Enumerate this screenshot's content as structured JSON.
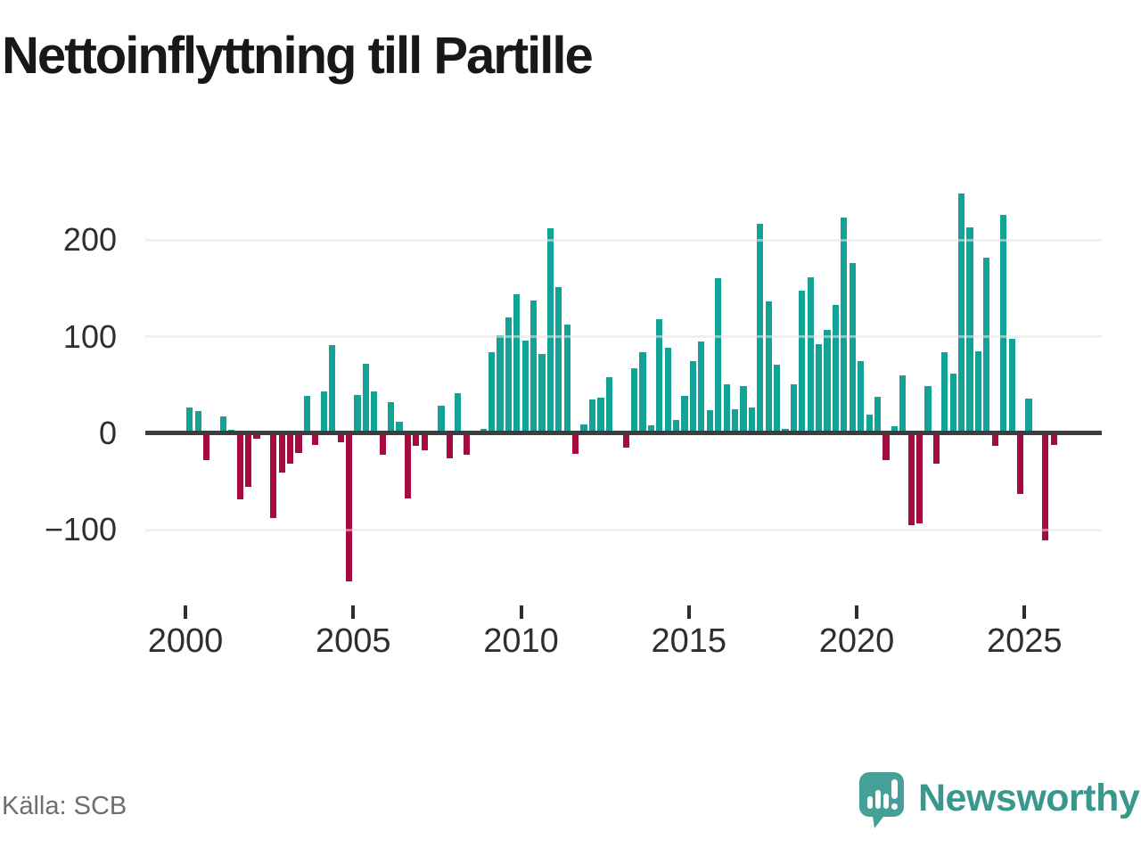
{
  "header": {
    "title": "Nettoinflyttning till Partille"
  },
  "footer": {
    "source": "Källa: SCB",
    "brand": "Newsworthy"
  },
  "logo": {
    "icon": "newsworthy-speech-bubble-chart-icon",
    "color": "#45a197"
  },
  "chart_data": {
    "type": "bar",
    "title": "Nettoinflyttning till Partille",
    "xlabel": "",
    "ylabel": "",
    "frequency": "quarterly",
    "x_start": "2000 Q1",
    "x_end": "2025 Q4",
    "ylim": [
      -170,
      265
    ],
    "grid": "horizontal",
    "legend": "none",
    "y_tick_values": [
      200,
      100,
      0,
      -100
    ],
    "y_tick_labels": [
      "200",
      "100",
      "0",
      "−100"
    ],
    "x_tick_years": [
      2000,
      2005,
      2010,
      2015,
      2020,
      2025
    ],
    "x_tick_labels": [
      "2000",
      "2005",
      "2010",
      "2015",
      "2020",
      "2025"
    ],
    "positive_color": "#13a296",
    "negative_color": "#a50b3e",
    "axis_color": "#3d3d3d",
    "grid_color": "#e3e3e3",
    "series": [
      {
        "name": "Nettoinflyttning",
        "years": [
          {
            "year": 2000,
            "values": [
              27,
              23,
              -28,
              0
            ]
          },
          {
            "year": 2001,
            "values": [
              18,
              4,
              -68,
              -55
            ]
          },
          {
            "year": 2002,
            "values": [
              -6,
              2,
              -88,
              -41
            ]
          },
          {
            "year": 2003,
            "values": [
              -31,
              -20,
              39,
              -12
            ]
          },
          {
            "year": 2004,
            "values": [
              43,
              91,
              -9,
              -153
            ]
          },
          {
            "year": 2005,
            "values": [
              40,
              72,
              43,
              -22
            ]
          },
          {
            "year": 2006,
            "values": [
              32,
              12,
              -67,
              -13
            ]
          },
          {
            "year": 2007,
            "values": [
              -18,
              0,
              29,
              -26
            ]
          },
          {
            "year": 2008,
            "values": [
              42,
              -22,
              0,
              5
            ]
          },
          {
            "year": 2009,
            "values": [
              84,
              102,
              120,
              144
            ]
          },
          {
            "year": 2010,
            "values": [
              96,
              138,
              82,
              212
            ]
          },
          {
            "year": 2011,
            "values": [
              151,
              113,
              -21,
              9
            ]
          },
          {
            "year": 2012,
            "values": [
              35,
              37,
              58,
              0
            ]
          },
          {
            "year": 2013,
            "values": [
              -15,
              67,
              84,
              8
            ]
          },
          {
            "year": 2014,
            "values": [
              118,
              89,
              14,
              39
            ]
          },
          {
            "year": 2015,
            "values": [
              75,
              95,
              24,
              161
            ]
          },
          {
            "year": 2016,
            "values": [
              51,
              25,
              49,
              27
            ]
          },
          {
            "year": 2017,
            "values": [
              217,
              137,
              71,
              5
            ]
          },
          {
            "year": 2018,
            "values": [
              51,
              148,
              162,
              92
            ]
          },
          {
            "year": 2019,
            "values": [
              107,
              133,
              223,
              176
            ]
          },
          {
            "year": 2020,
            "values": [
              75,
              19,
              38,
              -28
            ]
          },
          {
            "year": 2021,
            "values": [
              7,
              60,
              -95,
              -93
            ]
          },
          {
            "year": 2022,
            "values": [
              49,
              -31,
              84,
              62
            ]
          },
          {
            "year": 2023,
            "values": [
              248,
              213,
              85,
              182
            ]
          },
          {
            "year": 2024,
            "values": [
              -13,
              226,
              98,
              -63
            ]
          },
          {
            "year": 2025,
            "values": [
              36,
              0,
              -111,
              -12
            ]
          }
        ]
      }
    ]
  }
}
